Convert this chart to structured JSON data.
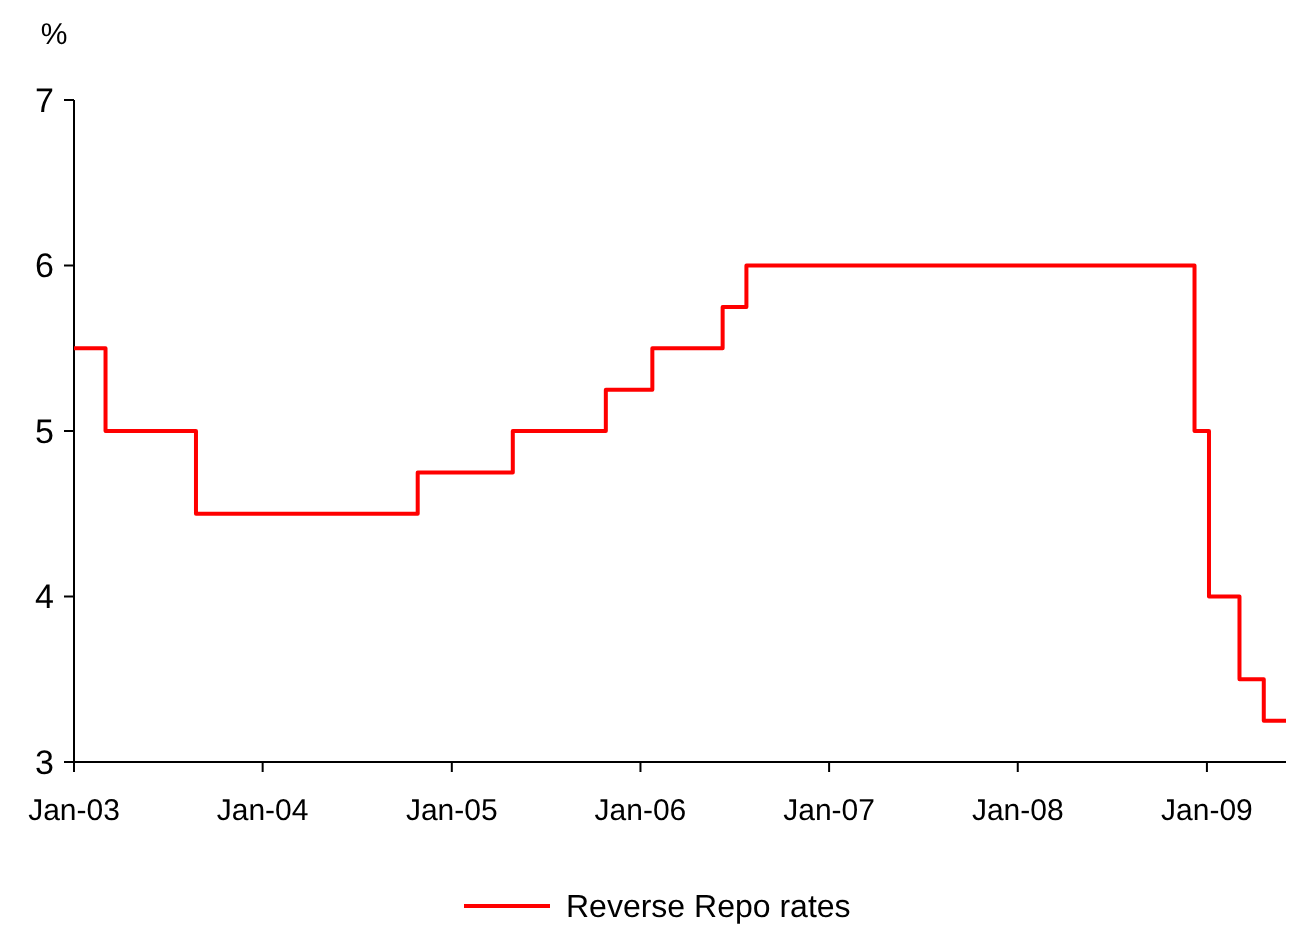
{
  "chart_data": {
    "type": "step",
    "ylabel": "%",
    "x": [
      "2003-01-01",
      "2003-03-03",
      "2003-08-25",
      "2004-10-27",
      "2005-04-29",
      "2005-10-26",
      "2006-01-24",
      "2006-06-09",
      "2006-07-25",
      "2008-12-08",
      "2009-01-05",
      "2009-03-05",
      "2009-04-21",
      "2009-06-03"
    ],
    "series": [
      {
        "name": "Reverse Repo rates",
        "color": "#ff0000",
        "values": [
          5.5,
          5.0,
          4.5,
          4.75,
          5.0,
          5.25,
          5.5,
          5.75,
          6.0,
          5.0,
          4.0,
          3.5,
          3.25,
          3.25
        ]
      }
    ],
    "xlim": [
      "2003-01-01",
      "2009-06-03"
    ],
    "ylim": [
      3,
      7
    ],
    "yticks": [
      3,
      4,
      5,
      6,
      7
    ],
    "xticks": [
      {
        "value": "2003-01",
        "label": "Jan-03"
      },
      {
        "value": "2004-01",
        "label": "Jan-04"
      },
      {
        "value": "2005-01",
        "label": "Jan-05"
      },
      {
        "value": "2006-01",
        "label": "Jan-06"
      },
      {
        "value": "2007-01",
        "label": "Jan-07"
      },
      {
        "value": "2008-01",
        "label": "Jan-08"
      },
      {
        "value": "2009-01",
        "label": "Jan-09"
      }
    ],
    "grid": false,
    "legend": "bottom",
    "line_style": "solid",
    "marker": "none"
  }
}
